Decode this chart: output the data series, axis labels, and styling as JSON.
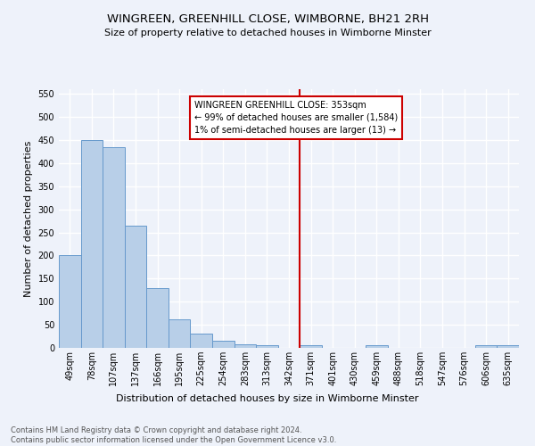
{
  "title": "WINGREEN, GREENHILL CLOSE, WIMBORNE, BH21 2RH",
  "subtitle": "Size of property relative to detached houses in Wimborne Minster",
  "xlabel": "Distribution of detached houses by size in Wimborne Minster",
  "ylabel": "Number of detached properties",
  "footer1": "Contains HM Land Registry data © Crown copyright and database right 2024.",
  "footer2": "Contains public sector information licensed under the Open Government Licence v3.0.",
  "bin_labels": [
    "49sqm",
    "78sqm",
    "107sqm",
    "137sqm",
    "166sqm",
    "195sqm",
    "225sqm",
    "254sqm",
    "283sqm",
    "313sqm",
    "342sqm",
    "371sqm",
    "401sqm",
    "430sqm",
    "459sqm",
    "488sqm",
    "518sqm",
    "547sqm",
    "576sqm",
    "606sqm",
    "635sqm"
  ],
  "bar_values": [
    200,
    450,
    435,
    265,
    130,
    62,
    30,
    15,
    8,
    5,
    0,
    5,
    0,
    0,
    5,
    0,
    0,
    0,
    0,
    5,
    5
  ],
  "bar_color": "#b8cfe8",
  "bar_edge_color": "#6699cc",
  "vline_bin_after": 10,
  "annotation_title": "WINGREEN GREENHILL CLOSE: 353sqm",
  "annotation_line1": "← 99% of detached houses are smaller (1,584)",
  "annotation_line2": "1% of semi-detached houses are larger (13) →",
  "vline_color": "#cc0000",
  "annotation_box_color": "#cc0000",
  "ylim": [
    0,
    560
  ],
  "yticks": [
    0,
    50,
    100,
    150,
    200,
    250,
    300,
    350,
    400,
    450,
    500,
    550
  ],
  "background_color": "#eef2fa",
  "grid_color": "#ffffff",
  "title_fontsize": 9.5,
  "subtitle_fontsize": 8,
  "axis_label_fontsize": 8,
  "tick_fontsize": 7,
  "footer_fontsize": 6
}
